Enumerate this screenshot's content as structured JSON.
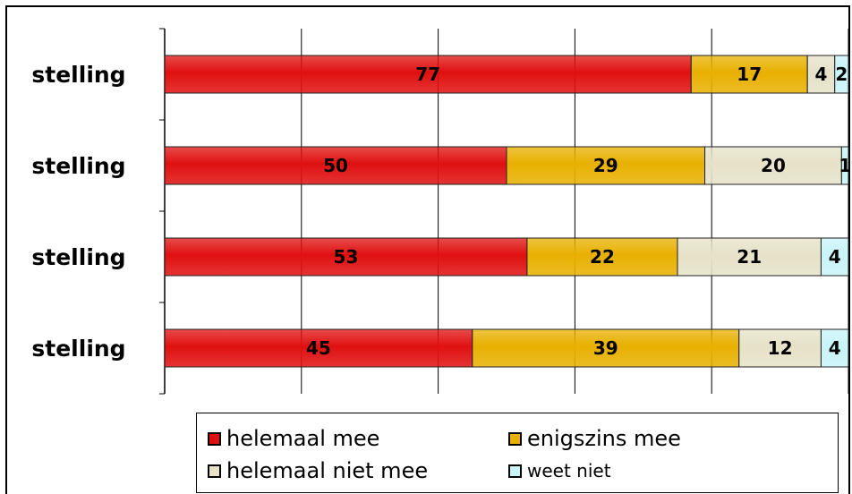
{
  "chart_data": {
    "type": "bar",
    "orientation": "horizontal",
    "stacked": true,
    "categories": [
      "stelling",
      "stelling",
      "stelling",
      "stelling"
    ],
    "series": [
      {
        "name": "helemaal mee",
        "color": "#e01010",
        "values": [
          77,
          50,
          53,
          45
        ]
      },
      {
        "name": "enigszins mee",
        "color": "#e8b000",
        "values": [
          17,
          29,
          22,
          39
        ]
      },
      {
        "name": "helemaal niet mee",
        "color": "#e6e2c8",
        "values": [
          4,
          20,
          21,
          12
        ]
      },
      {
        "name": "weet niet",
        "color": "#c8f4f8",
        "values": [
          2,
          1,
          4,
          4
        ]
      }
    ],
    "xlim": [
      0,
      100
    ],
    "grid": true,
    "legend_position": "bottom"
  }
}
